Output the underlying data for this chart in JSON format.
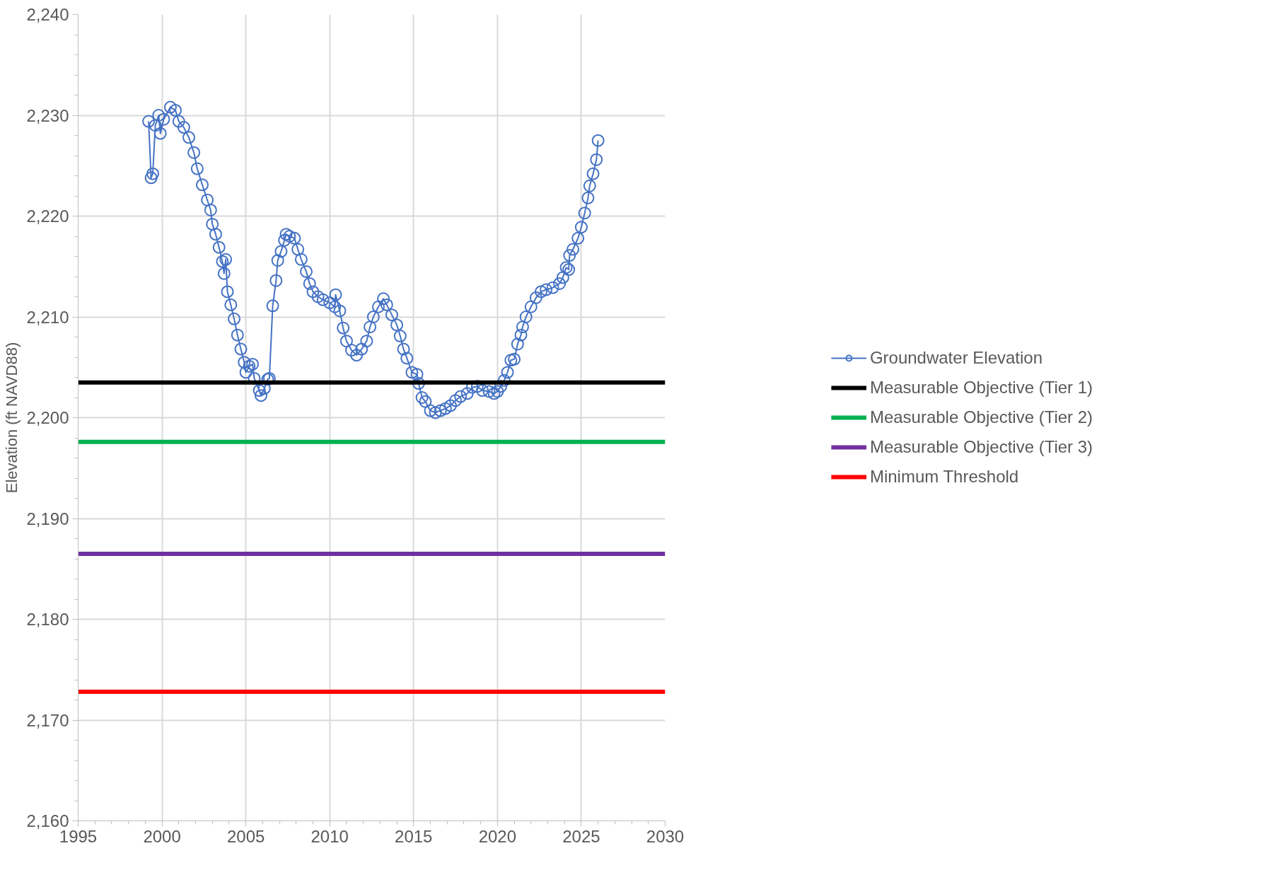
{
  "chart_data": {
    "type": "line",
    "ylabel": "Elevation (ft NAVD88)",
    "xlim": [
      1995,
      2030
    ],
    "xticks": [
      1995,
      {
        "value": 1996,
        "label": null
      },
      {
        "value": 1997,
        "label": null
      },
      {
        "value": 1998,
        "label": null
      },
      {
        "value": 1999,
        "label": null
      },
      2000,
      {
        "value": 2001,
        "label": null
      },
      {
        "value": 2002,
        "label": null
      },
      {
        "value": 2003,
        "label": null
      },
      {
        "value": 2004,
        "label": null
      },
      2005,
      {
        "value": 2006,
        "label": null
      },
      {
        "value": 2007,
        "label": null
      },
      {
        "value": 2008,
        "label": null
      },
      {
        "value": 2009,
        "label": null
      },
      2010,
      {
        "value": 2011,
        "label": null
      },
      {
        "value": 2012,
        "label": null
      },
      {
        "value": 2013,
        "label": null
      },
      {
        "value": 2014,
        "label": null
      },
      2015,
      {
        "value": 2016,
        "label": null
      },
      {
        "value": 2017,
        "label": null
      },
      {
        "value": 2018,
        "label": null
      },
      {
        "value": 2019,
        "label": null
      },
      2020,
      {
        "value": 2021,
        "label": null
      },
      {
        "value": 2022,
        "label": null
      },
      {
        "value": 2023,
        "label": null
      },
      {
        "value": 2024,
        "label": null
      },
      2025,
      {
        "value": 2026,
        "label": null
      },
      {
        "value": 2027,
        "label": null
      },
      {
        "value": 2028,
        "label": null
      },
      {
        "value": 2029,
        "label": null
      },
      2030
    ],
    "ylim": [
      2160,
      2240
    ],
    "yticks": [
      {
        "value": 2160,
        "label": "2,160"
      },
      {
        "value": 2162,
        "label": null
      },
      {
        "value": 2164,
        "label": null
      },
      {
        "value": 2166,
        "label": null
      },
      {
        "value": 2168,
        "label": null
      },
      {
        "value": 2170,
        "label": "2,170"
      },
      {
        "value": 2172,
        "label": null
      },
      {
        "value": 2174,
        "label": null
      },
      {
        "value": 2176,
        "label": null
      },
      {
        "value": 2178,
        "label": null
      },
      {
        "value": 2180,
        "label": "2,180"
      },
      {
        "value": 2182,
        "label": null
      },
      {
        "value": 2184,
        "label": null
      },
      {
        "value": 2186,
        "label": null
      },
      {
        "value": 2188,
        "label": null
      },
      {
        "value": 2190,
        "label": "2,190"
      },
      {
        "value": 2192,
        "label": null
      },
      {
        "value": 2194,
        "label": null
      },
      {
        "value": 2196,
        "label": null
      },
      {
        "value": 2198,
        "label": null
      },
      {
        "value": 2200,
        "label": "2,200"
      },
      {
        "value": 2202,
        "label": null
      },
      {
        "value": 2204,
        "label": null
      },
      {
        "value": 2206,
        "label": null
      },
      {
        "value": 2208,
        "label": null
      },
      {
        "value": 2210,
        "label": "2,210"
      },
      {
        "value": 2212,
        "label": null
      },
      {
        "value": 2214,
        "label": null
      },
      {
        "value": 2216,
        "label": null
      },
      {
        "value": 2218,
        "label": null
      },
      {
        "value": 2220,
        "label": "2,220"
      },
      {
        "value": 2222,
        "label": null
      },
      {
        "value": 2224,
        "label": null
      },
      {
        "value": 2226,
        "label": null
      },
      {
        "value": 2228,
        "label": null
      },
      {
        "value": 2230,
        "label": "2,230"
      },
      {
        "value": 2232,
        "label": null
      },
      {
        "value": 2234,
        "label": null
      },
      {
        "value": 2236,
        "label": null
      },
      {
        "value": 2238,
        "label": null
      },
      {
        "value": 2240,
        "label": "2,240"
      }
    ],
    "grid": true,
    "legend": "right",
    "series": [
      {
        "name": "Groundwater Elevation",
        "color": "#4472c4",
        "marker": "circle",
        "x": [
          1999.2,
          1999.35,
          1999.45,
          1999.6,
          1999.8,
          1999.9,
          2000.1,
          2000.5,
          2000.8,
          2001.0,
          2001.3,
          2001.6,
          2001.9,
          2002.1,
          2002.4,
          2002.7,
          2002.9,
          2003.0,
          2003.2,
          2003.4,
          2003.6,
          2003.7,
          2003.8,
          2003.9,
          2004.1,
          2004.3,
          2004.5,
          2004.7,
          2004.9,
          2005.0,
          2005.2,
          2005.4,
          2005.5,
          2005.8,
          2005.9,
          2006.1,
          2006.3,
          2006.4,
          2006.6,
          2006.8,
          2006.9,
          2007.1,
          2007.3,
          2007.4,
          2007.6,
          2007.9,
          2008.1,
          2008.3,
          2008.6,
          2008.8,
          2009.0,
          2009.3,
          2009.6,
          2010.0,
          2010.3,
          2010.35,
          2010.6,
          2010.8,
          2011.0,
          2011.3,
          2011.6,
          2011.9,
          2012.2,
          2012.4,
          2012.6,
          2012.9,
          2013.2,
          2013.4,
          2013.7,
          2014.0,
          2014.2,
          2014.4,
          2014.6,
          2014.9,
          2015.2,
          2015.3,
          2015.5,
          2015.7,
          2016.0,
          2016.3,
          2016.6,
          2016.9,
          2017.2,
          2017.5,
          2017.8,
          2018.2,
          2018.5,
          2018.8,
          2019.1,
          2019.5,
          2019.8,
          2020.0,
          2020.2,
          2020.4,
          2020.6,
          2020.8,
          2021.0,
          2021.2,
          2021.4,
          2021.5,
          2021.7,
          2022.0,
          2022.3,
          2022.6,
          2022.9,
          2023.3,
          2023.7,
          2023.9,
          2024.1,
          2024.25,
          2024.3,
          2024.5,
          2024.8,
          2025.0,
          2025.2,
          2025.4,
          2025.5,
          2025.7,
          2025.9,
          2026.0
        ],
        "values": [
          2229.4,
          2223.8,
          2224.2,
          2229.0,
          2230.0,
          2228.2,
          2229.6,
          2230.8,
          2230.5,
          2229.4,
          2228.8,
          2227.8,
          2226.3,
          2224.7,
          2223.1,
          2221.6,
          2220.6,
          2219.2,
          2218.2,
          2216.9,
          2215.5,
          2214.3,
          2215.7,
          2212.5,
          2211.2,
          2209.8,
          2208.2,
          2206.8,
          2205.5,
          2204.5,
          2205.1,
          2205.3,
          2203.9,
          2202.7,
          2202.2,
          2202.9,
          2203.8,
          2203.9,
          2211.1,
          2213.6,
          2215.6,
          2216.5,
          2217.6,
          2218.2,
          2218.0,
          2217.8,
          2216.7,
          2215.7,
          2214.5,
          2213.3,
          2212.5,
          2212.0,
          2211.7,
          2211.4,
          2211.0,
          2212.2,
          2210.6,
          2208.9,
          2207.6,
          2206.7,
          2206.2,
          2206.8,
          2207.6,
          2209.0,
          2210.0,
          2211.0,
          2211.8,
          2211.2,
          2210.2,
          2209.2,
          2208.1,
          2206.8,
          2205.9,
          2204.5,
          2204.3,
          2203.4,
          2202.0,
          2201.6,
          2200.7,
          2200.5,
          2200.7,
          2200.9,
          2201.2,
          2201.7,
          2202.1,
          2202.4,
          2203.0,
          2203.1,
          2202.7,
          2202.6,
          2202.4,
          2202.6,
          2203.1,
          2203.7,
          2204.5,
          2205.7,
          2205.8,
          2207.3,
          2208.2,
          2209.0,
          2210.0,
          2211.0,
          2211.9,
          2212.5,
          2212.7,
          2212.9,
          2213.3,
          2213.9,
          2214.9,
          2214.7,
          2216.1,
          2216.7,
          2217.8,
          2218.9,
          2220.3,
          2221.8,
          2223.0,
          2224.2,
          2225.6,
          2227.5
        ]
      },
      {
        "name": "Measurable Objective (Tier 1)",
        "color": "#000000",
        "marker": "none",
        "x": [
          1995,
          2030
        ],
        "values": [
          2203.5,
          2203.5
        ]
      },
      {
        "name": "Measurable Objective (Tier 2)",
        "color": "#00b050",
        "marker": "none",
        "x": [
          1995,
          2030
        ],
        "values": [
          2197.6,
          2197.6
        ]
      },
      {
        "name": "Measurable Objective (Tier 3)",
        "color": "#7030a0",
        "marker": "none",
        "x": [
          1995,
          2030
        ],
        "values": [
          2186.5,
          2186.5
        ]
      },
      {
        "name": "Minimum Threshold",
        "color": "#ff0000",
        "marker": "none",
        "x": [
          1995,
          2030
        ],
        "values": [
          2172.8,
          2172.8
        ]
      }
    ]
  }
}
